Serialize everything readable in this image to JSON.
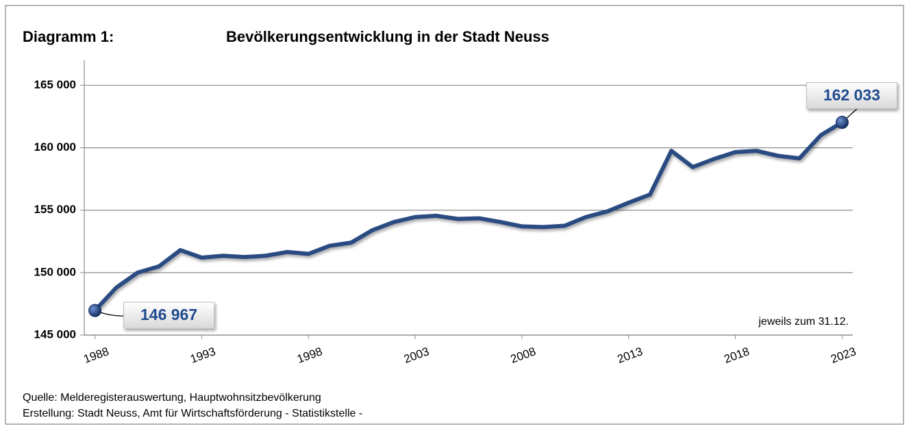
{
  "chart_data": {
    "type": "line",
    "title": "Bevölkerungsentwicklung in der Stadt Neuss",
    "label": "Diagramm 1:",
    "annotation": "jeweils zum 31.12.",
    "source": [
      "Quelle: Melderegisterauswertung, Hauptwohnsitzbevölkerung",
      "Erstellung: Stadt Neuss, Amt für Wirtschaftsförderung - Statistikstelle -"
    ],
    "color": "#2b4c82",
    "x": [
      1988,
      1989,
      1990,
      1991,
      1992,
      1993,
      1994,
      1995,
      1996,
      1997,
      1998,
      1999,
      2000,
      2001,
      2002,
      2003,
      2004,
      2005,
      2006,
      2007,
      2008,
      2009,
      2010,
      2011,
      2012,
      2013,
      2014,
      2015,
      2016,
      2017,
      2018,
      2019,
      2020,
      2021,
      2022,
      2023
    ],
    "values": [
      146967,
      148800,
      150000,
      150500,
      151800,
      151200,
      151350,
      151250,
      151350,
      151650,
      151500,
      152150,
      152400,
      153400,
      154050,
      154450,
      154550,
      154300,
      154350,
      154050,
      153700,
      153650,
      153750,
      154450,
      154900,
      155600,
      156250,
      159750,
      158450,
      159100,
      159650,
      159750,
      159350,
      159150,
      161000,
      162033
    ],
    "value_labels": [
      "146 967",
      null,
      null,
      null,
      null,
      null,
      null,
      null,
      null,
      null,
      null,
      null,
      null,
      null,
      null,
      null,
      null,
      null,
      null,
      null,
      null,
      null,
      null,
      null,
      null,
      null,
      null,
      null,
      null,
      null,
      null,
      null,
      null,
      null,
      null,
      "162 033"
    ],
    "xlim": [
      1987.5,
      2023.5
    ],
    "xticks": [
      1988,
      1993,
      1998,
      2003,
      2008,
      2013,
      2018,
      2023
    ],
    "ylim": [
      145000,
      167000
    ],
    "yticks": [
      {
        "value": 145000,
        "label": "145 000"
      },
      {
        "value": 150000,
        "label": "150 000"
      },
      {
        "value": 155000,
        "label": "155 000"
      },
      {
        "value": 160000,
        "label": "160 000"
      },
      {
        "value": 165000,
        "label": "165 000"
      }
    ],
    "grid": true
  }
}
